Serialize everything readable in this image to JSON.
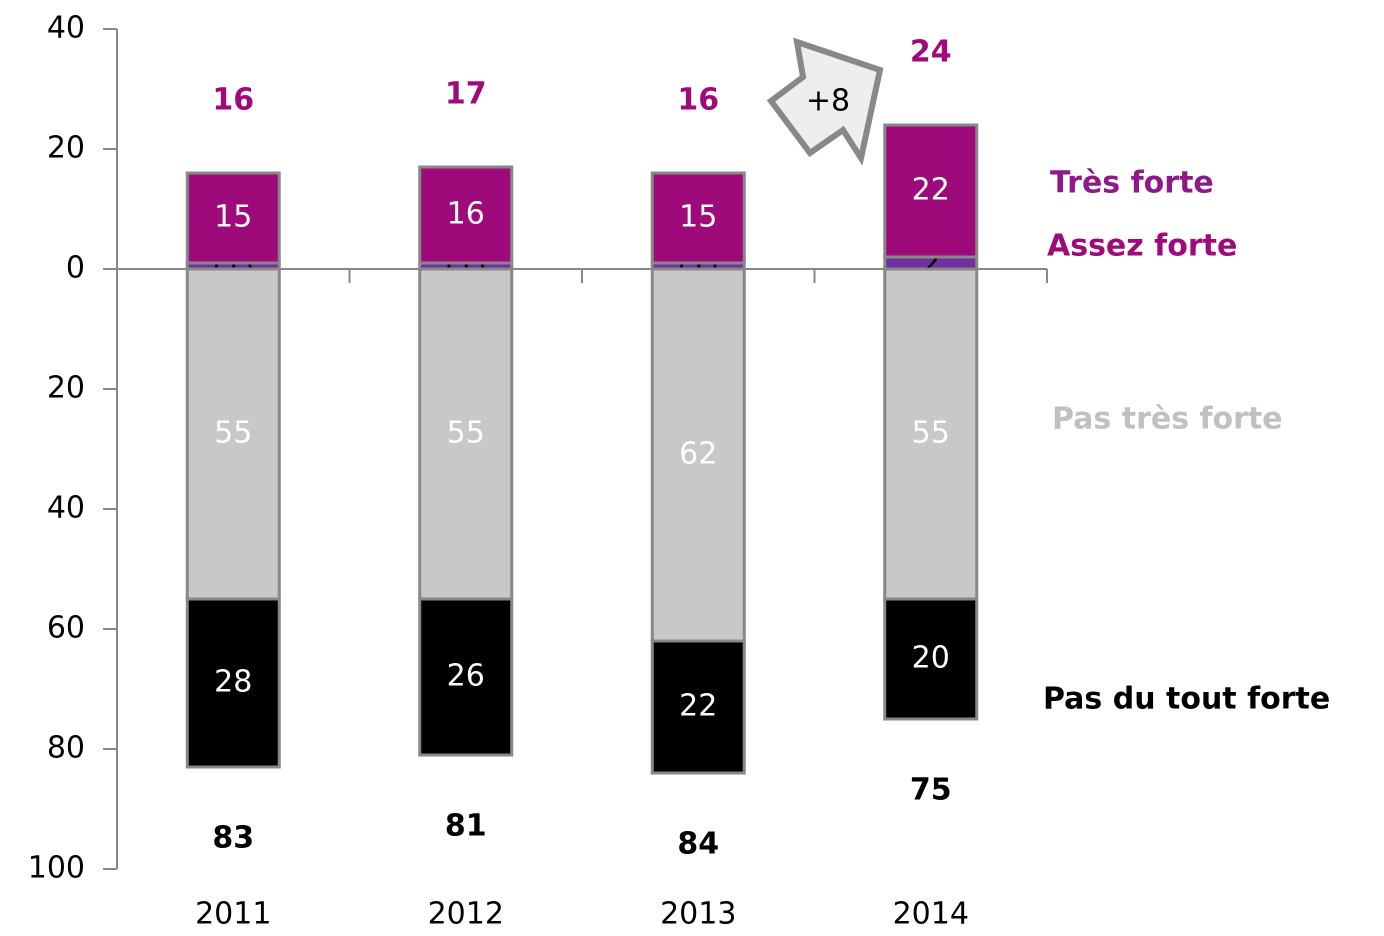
{
  "chart_data": {
    "type": "stacked_bar",
    "categories": [
      "2011",
      "2012",
      "2013",
      "2014"
    ],
    "series": [
      {
        "name": "Très forte",
        "color": "#7030a0",
        "label_color": "#8e1a8a",
        "value_color": "#000000",
        "values": [
          1,
          1,
          1,
          2
        ],
        "value_labels": [
          "(1)",
          "(1)",
          "(1)",
          "2"
        ]
      },
      {
        "name": "Assez forte",
        "color": "#9e0a7a",
        "label_color": "#9e0a7a",
        "value_color": "#ffffff",
        "values": [
          15,
          16,
          15,
          22
        ]
      },
      {
        "name": "Pas très forte",
        "color": "#c8c8c8",
        "label_color": "#c0c0c0",
        "value_color": "#ffffff",
        "values": [
          -55,
          -55,
          -62,
          -55
        ],
        "value_labels": [
          "55",
          "55",
          "62",
          "55"
        ]
      },
      {
        "name": "Pas du tout forte",
        "color": "#000000",
        "label_color": "#000000",
        "value_color": "#ffffff",
        "values": [
          -28,
          -26,
          -22,
          -20
        ],
        "value_labels": [
          "28",
          "26",
          "22",
          "20"
        ]
      }
    ],
    "totals_positive": {
      "color": "#9e0a7a",
      "values": [
        16,
        17,
        16,
        24
      ]
    },
    "totals_negative": {
      "color": "#000000",
      "values": [
        -83,
        -81,
        -84,
        -75
      ],
      "value_labels": [
        "83",
        "81",
        "84",
        "75"
      ]
    },
    "annotation": "+8",
    "ylim": [
      -100,
      40
    ],
    "yticks": [
      40,
      20,
      0,
      {
        "value": -20,
        "label": "20"
      },
      {
        "value": -40,
        "label": "40"
      },
      {
        "value": -60,
        "label": "60"
      },
      {
        "value": -80,
        "label": "80"
      },
      {
        "value": -100,
        "label": "100"
      }
    ]
  }
}
